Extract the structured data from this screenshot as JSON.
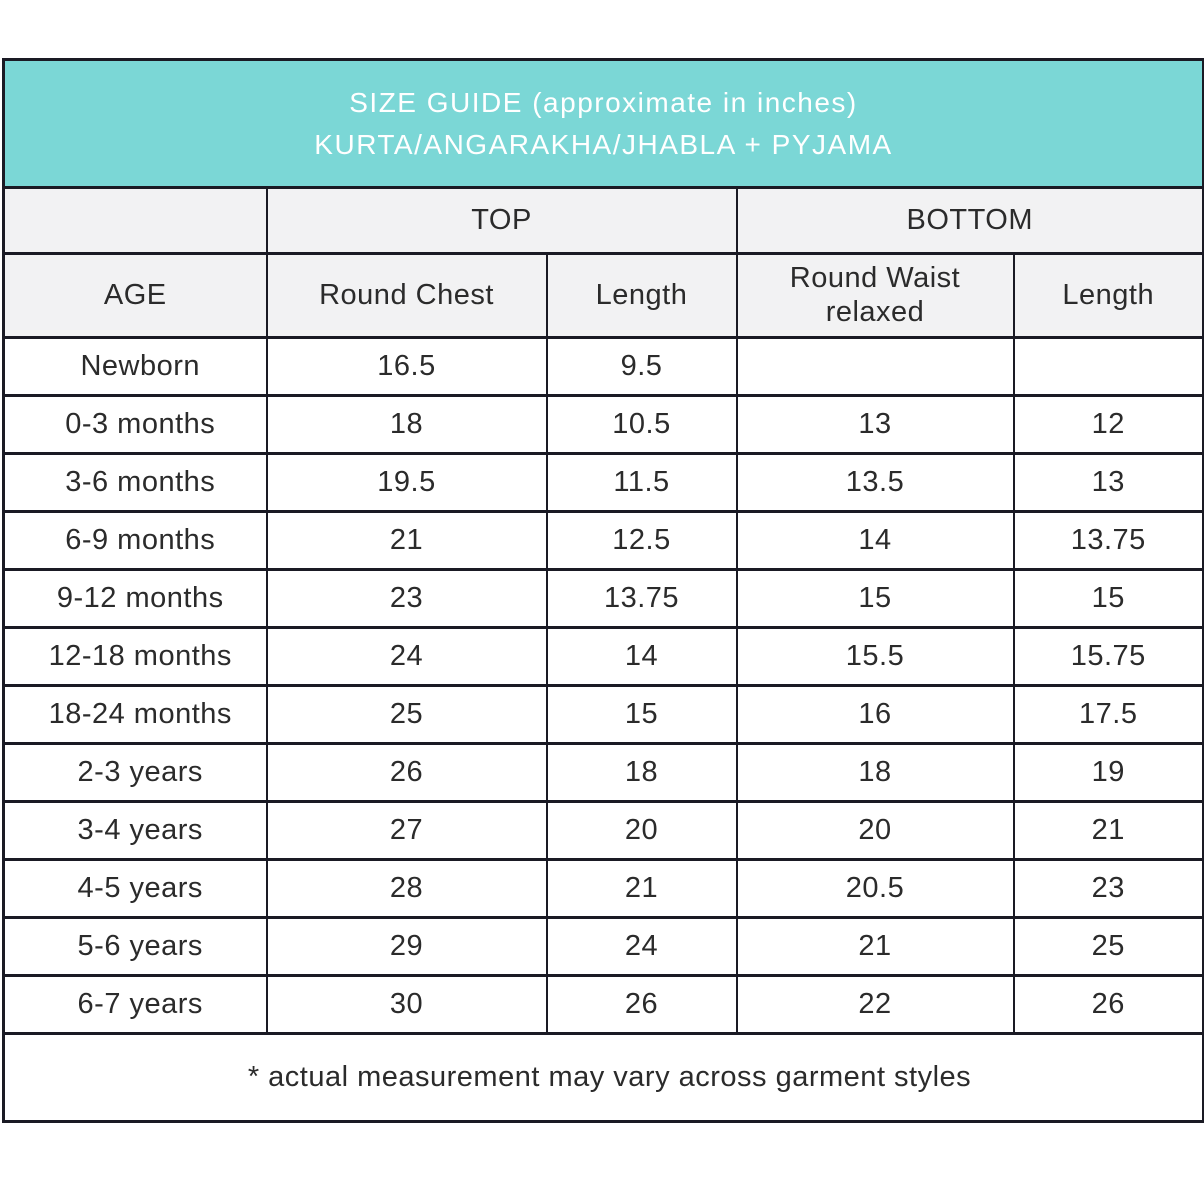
{
  "title": {
    "line1": "SIZE GUIDE (approximate in inches)",
    "line2": "KURTA/ANGARAKHA/JHABLA + PYJAMA"
  },
  "colors": {
    "header_bg": "#7bd7d6",
    "header_text": "#ffffff",
    "subheader_bg": "#f2f2f3",
    "border": "#1a1a24",
    "text": "#2b2b2b"
  },
  "table": {
    "group_headers": [
      {
        "label": "TOP",
        "span": 2
      },
      {
        "label": "BOTTOM",
        "span": 2
      }
    ],
    "column_headers": [
      "AGE",
      "Round Chest",
      "Length",
      "Round Waist relaxed",
      "Length"
    ],
    "rows": [
      {
        "age": "Newborn",
        "top_round_chest": "16.5",
        "top_length": "9.5",
        "bottom_round_waist": "",
        "bottom_length": ""
      },
      {
        "age": "0-3 months",
        "top_round_chest": "18",
        "top_length": "10.5",
        "bottom_round_waist": "13",
        "bottom_length": "12"
      },
      {
        "age": "3-6 months",
        "top_round_chest": "19.5",
        "top_length": "11.5",
        "bottom_round_waist": "13.5",
        "bottom_length": "13"
      },
      {
        "age": "6-9 months",
        "top_round_chest": "21",
        "top_length": "12.5",
        "bottom_round_waist": "14",
        "bottom_length": "13.75"
      },
      {
        "age": "9-12 months",
        "top_round_chest": "23",
        "top_length": "13.75",
        "bottom_round_waist": "15",
        "bottom_length": "15"
      },
      {
        "age": "12-18 months",
        "top_round_chest": "24",
        "top_length": "14",
        "bottom_round_waist": "15.5",
        "bottom_length": "15.75"
      },
      {
        "age": "18-24 months",
        "top_round_chest": "25",
        "top_length": "15",
        "bottom_round_waist": "16",
        "bottom_length": "17.5"
      },
      {
        "age": "2-3 years",
        "top_round_chest": "26",
        "top_length": "18",
        "bottom_round_waist": "18",
        "bottom_length": "19"
      },
      {
        "age": "3-4 years",
        "top_round_chest": "27",
        "top_length": "20",
        "bottom_round_waist": "20",
        "bottom_length": "21"
      },
      {
        "age": "4-5 years",
        "top_round_chest": "28",
        "top_length": "21",
        "bottom_round_waist": "20.5",
        "bottom_length": "23"
      },
      {
        "age": "5-6 years",
        "top_round_chest": "29",
        "top_length": "24",
        "bottom_round_waist": "21",
        "bottom_length": "25"
      },
      {
        "age": "6-7 years",
        "top_round_chest": "30",
        "top_length": "26",
        "bottom_round_waist": "22",
        "bottom_length": "26"
      }
    ]
  },
  "footnote": "* actual measurement may vary across garment styles"
}
